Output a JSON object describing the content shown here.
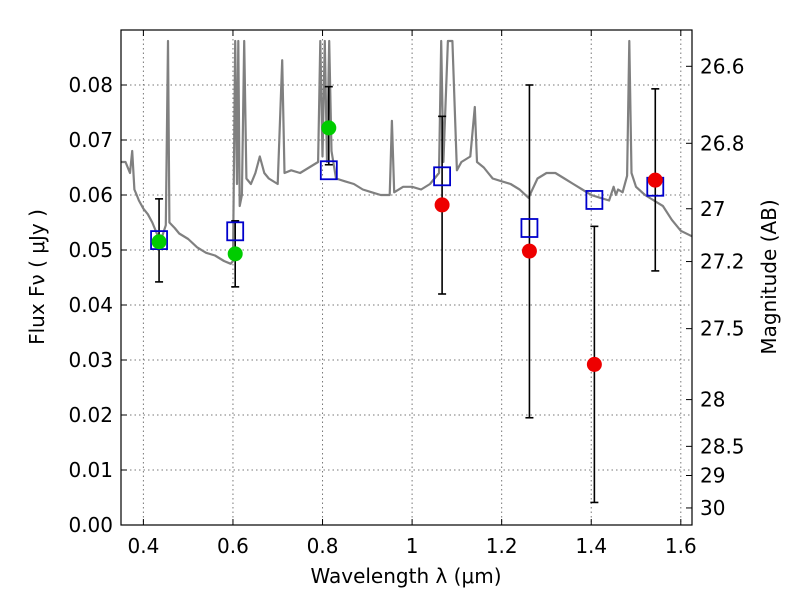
{
  "chart_data": {
    "type": "scatter",
    "title": "",
    "xlabel": "Wavelength  λ (μm)",
    "ylabel": "Flux  Fν  ( μJy )",
    "ylabel_right": "Magnitude (AB)",
    "xlim": [
      0.35,
      1.625
    ],
    "ylim": [
      0.0,
      0.09
    ],
    "grid": true,
    "x_ticks": [
      {
        "value": 0.4,
        "label": "0.4"
      },
      {
        "value": 0.6,
        "label": "0.6"
      },
      {
        "value": 0.8,
        "label": "0.8"
      },
      {
        "value": 1.0,
        "label": "1"
      },
      {
        "value": 1.2,
        "label": "1.2"
      },
      {
        "value": 1.4,
        "label": "1.4"
      },
      {
        "value": 1.6,
        "label": "1.6"
      }
    ],
    "y_ticks": [
      {
        "value": 0.0,
        "label": "0.00"
      },
      {
        "value": 0.01,
        "label": "0.01"
      },
      {
        "value": 0.02,
        "label": "0.02"
      },
      {
        "value": 0.03,
        "label": "0.03"
      },
      {
        "value": 0.04,
        "label": "0.04"
      },
      {
        "value": 0.05,
        "label": "0.05"
      },
      {
        "value": 0.06,
        "label": "0.06"
      },
      {
        "value": 0.07,
        "label": "0.07"
      },
      {
        "value": 0.08,
        "label": "0.08"
      }
    ],
    "right_ticks": [
      {
        "label": "26.6",
        "flux": 0.0834
      },
      {
        "label": "26.8",
        "flux": 0.0694
      },
      {
        "label": "27",
        "flux": 0.0575
      },
      {
        "label": "27.2",
        "flux": 0.0479
      },
      {
        "label": "27.5",
        "flux": 0.0357
      },
      {
        "label": "28",
        "flux": 0.0228
      },
      {
        "label": "28.5",
        "flux": 0.0143
      },
      {
        "label": "29",
        "flux": 0.009
      },
      {
        "label": "30",
        "flux": 0.0031
      }
    ],
    "colors": {
      "model": "#808080",
      "model_points": "#0000cc",
      "detections": "#00cc00",
      "measurements": "#ee0000",
      "errorbar": "#000000",
      "grid": "#777777"
    },
    "series": [
      {
        "name": "model spectrum",
        "style": "line",
        "points": [
          [
            0.35,
            0.066
          ],
          [
            0.36,
            0.066
          ],
          [
            0.37,
            0.064
          ],
          [
            0.375,
            0.068
          ],
          [
            0.38,
            0.061
          ],
          [
            0.385,
            0.06
          ],
          [
            0.39,
            0.059
          ],
          [
            0.4,
            0.0575
          ],
          [
            0.41,
            0.0565
          ],
          [
            0.42,
            0.055
          ],
          [
            0.43,
            0.053
          ],
          [
            0.44,
            0.052
          ],
          [
            0.45,
            0.0545
          ],
          [
            0.455,
            0.088
          ],
          [
            0.458,
            0.055
          ],
          [
            0.47,
            0.054
          ],
          [
            0.48,
            0.053
          ],
          [
            0.5,
            0.052
          ],
          [
            0.52,
            0.0505
          ],
          [
            0.54,
            0.0495
          ],
          [
            0.56,
            0.049
          ],
          [
            0.58,
            0.048
          ],
          [
            0.595,
            0.0475
          ],
          [
            0.6,
            0.048
          ],
          [
            0.605,
            0.088
          ],
          [
            0.609,
            0.062
          ],
          [
            0.612,
            0.088
          ],
          [
            0.615,
            0.058
          ],
          [
            0.62,
            0.06
          ],
          [
            0.625,
            0.088
          ],
          [
            0.63,
            0.063
          ],
          [
            0.64,
            0.062
          ],
          [
            0.65,
            0.064
          ],
          [
            0.66,
            0.067
          ],
          [
            0.67,
            0.064
          ],
          [
            0.68,
            0.063
          ],
          [
            0.7,
            0.062
          ],
          [
            0.71,
            0.0845
          ],
          [
            0.715,
            0.064
          ],
          [
            0.73,
            0.0645
          ],
          [
            0.75,
            0.064
          ],
          [
            0.77,
            0.065
          ],
          [
            0.79,
            0.066
          ],
          [
            0.795,
            0.088
          ],
          [
            0.8,
            0.067
          ],
          [
            0.805,
            0.088
          ],
          [
            0.81,
            0.066
          ],
          [
            0.815,
            0.088
          ],
          [
            0.82,
            0.068
          ],
          [
            0.83,
            0.063
          ],
          [
            0.85,
            0.0625
          ],
          [
            0.87,
            0.062
          ],
          [
            0.89,
            0.061
          ],
          [
            0.91,
            0.0605
          ],
          [
            0.93,
            0.06
          ],
          [
            0.95,
            0.06
          ],
          [
            0.955,
            0.0735
          ],
          [
            0.96,
            0.0605
          ],
          [
            0.98,
            0.0615
          ],
          [
            1.0,
            0.0615
          ],
          [
            1.02,
            0.061
          ],
          [
            1.04,
            0.062
          ],
          [
            1.06,
            0.064
          ],
          [
            1.065,
            0.088
          ],
          [
            1.07,
            0.066
          ],
          [
            1.08,
            0.088
          ],
          [
            1.09,
            0.088
          ],
          [
            1.1,
            0.0645
          ],
          [
            1.11,
            0.066
          ],
          [
            1.13,
            0.067
          ],
          [
            1.14,
            0.076
          ],
          [
            1.145,
            0.066
          ],
          [
            1.16,
            0.065
          ],
          [
            1.17,
            0.064
          ],
          [
            1.18,
            0.063
          ],
          [
            1.2,
            0.0625
          ],
          [
            1.22,
            0.062
          ],
          [
            1.24,
            0.061
          ],
          [
            1.26,
            0.0595
          ],
          [
            1.28,
            0.063
          ],
          [
            1.3,
            0.064
          ],
          [
            1.32,
            0.064
          ],
          [
            1.34,
            0.063
          ],
          [
            1.36,
            0.062
          ],
          [
            1.38,
            0.061
          ],
          [
            1.4,
            0.06
          ],
          [
            1.42,
            0.0595
          ],
          [
            1.44,
            0.059
          ],
          [
            1.45,
            0.0615
          ],
          [
            1.455,
            0.06
          ],
          [
            1.46,
            0.061
          ],
          [
            1.47,
            0.0605
          ],
          [
            1.48,
            0.0635
          ],
          [
            1.485,
            0.088
          ],
          [
            1.49,
            0.064
          ],
          [
            1.5,
            0.0615
          ],
          [
            1.52,
            0.06
          ],
          [
            1.54,
            0.059
          ],
          [
            1.56,
            0.058
          ],
          [
            1.58,
            0.0555
          ],
          [
            1.6,
            0.0535
          ],
          [
            1.625,
            0.0525
          ]
        ]
      },
      {
        "name": "model photometry",
        "style": "open-square",
        "points": [
          [
            0.435,
            0.0518
          ],
          [
            0.605,
            0.0534
          ],
          [
            0.814,
            0.0645
          ],
          [
            1.067,
            0.0634
          ],
          [
            1.262,
            0.054
          ],
          [
            1.407,
            0.0591
          ],
          [
            1.543,
            0.0615
          ]
        ]
      },
      {
        "name": "observed (green)",
        "style": "filled-circle",
        "points": [
          [
            0.435,
            0.0515
          ],
          [
            0.605,
            0.0493
          ],
          [
            0.814,
            0.0722
          ]
        ]
      },
      {
        "name": "observed (red)",
        "style": "filled-circle",
        "points": [
          [
            1.067,
            0.0582
          ],
          [
            1.262,
            0.0498
          ],
          [
            1.407,
            0.0292
          ],
          [
            1.543,
            0.0627
          ]
        ]
      }
    ],
    "error_bars": [
      {
        "x": 0.435,
        "low": 0.0442,
        "high": 0.0593
      },
      {
        "x": 0.605,
        "low": 0.0433,
        "high": 0.0553
      },
      {
        "x": 0.814,
        "low": 0.0655,
        "high": 0.0797
      },
      {
        "x": 1.067,
        "low": 0.042,
        "high": 0.0743
      },
      {
        "x": 1.262,
        "low": 0.0195,
        "high": 0.08
      },
      {
        "x": 1.407,
        "low": 0.0041,
        "high": 0.0543
      },
      {
        "x": 1.543,
        "low": 0.0462,
        "high": 0.0793
      }
    ]
  }
}
